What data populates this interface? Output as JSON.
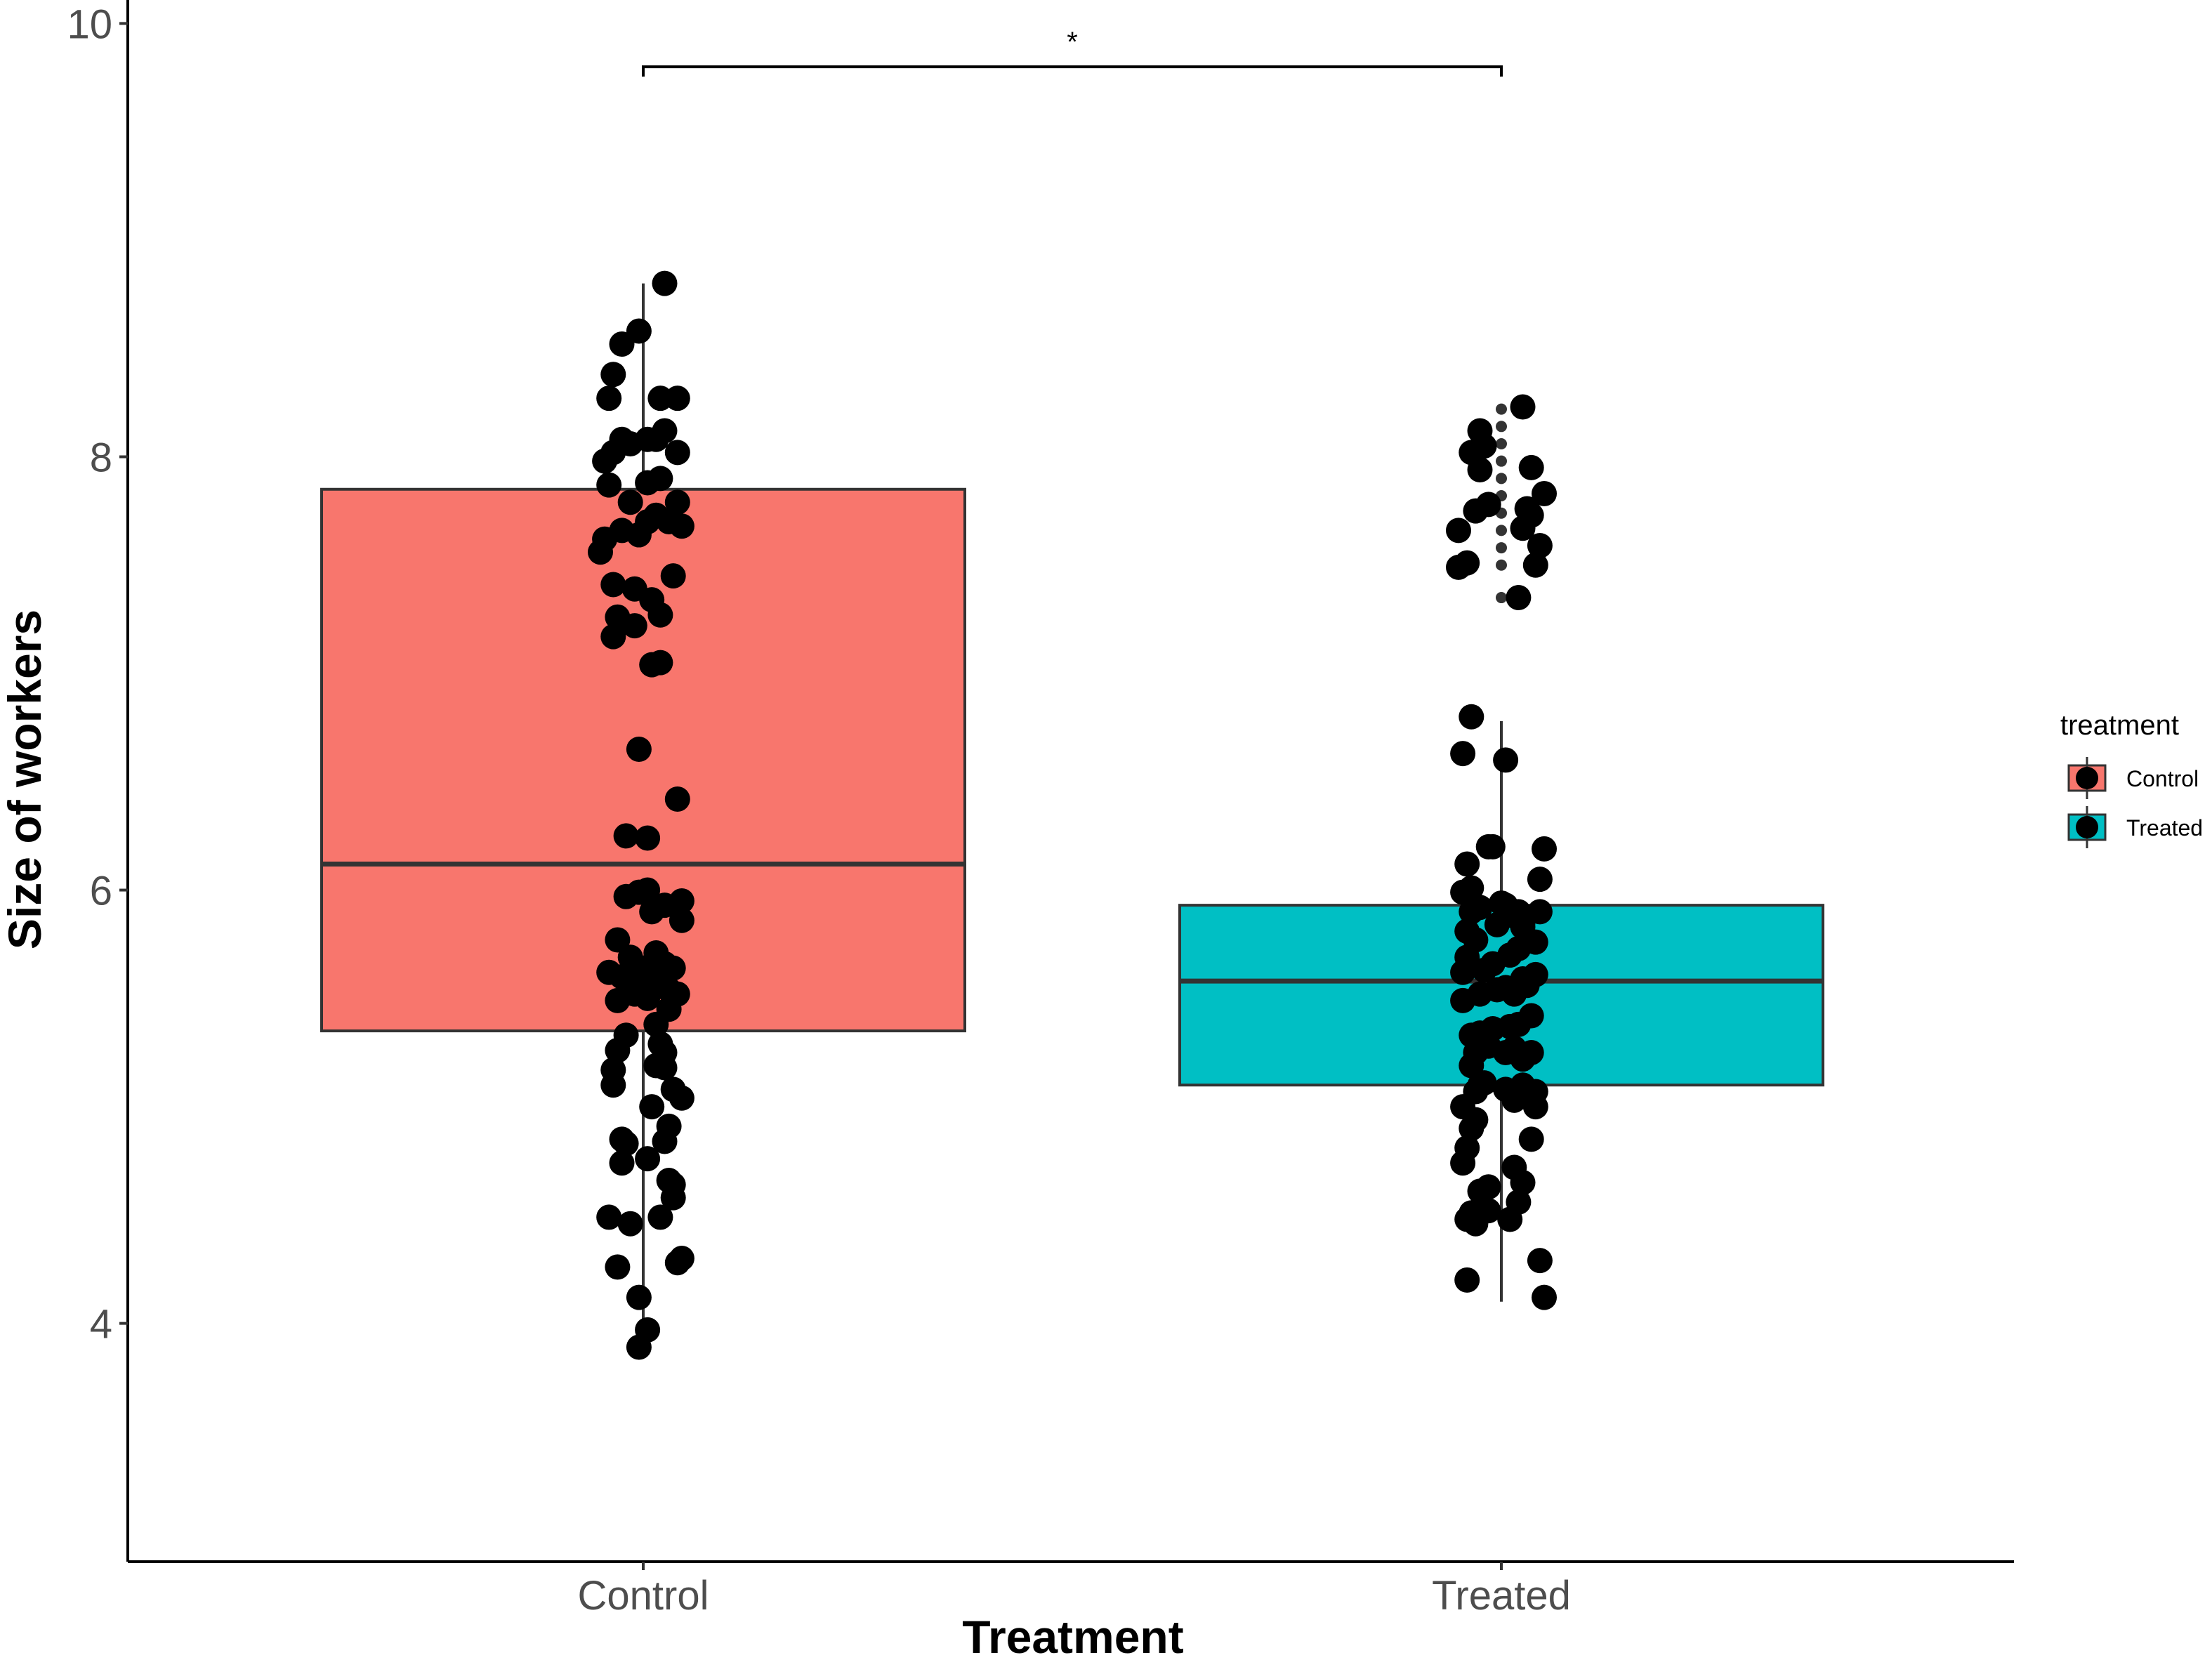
{
  "chart_data": {
    "type": "box",
    "xlabel": "Treatment",
    "ylabel": "Size of workers",
    "categories": [
      "Control",
      "Treated"
    ],
    "ylim": [
      2.9,
      10.05
    ],
    "yticks": [
      4,
      6,
      8,
      10
    ],
    "grid": false,
    "legend": {
      "title": "treatment",
      "position": "right",
      "entries": [
        "Control",
        "Treated"
      ]
    },
    "significance": {
      "label": "*",
      "between": [
        "Control",
        "Treated"
      ],
      "y": 9.8
    },
    "colors": {
      "Control": "#f8766d",
      "Treated": "#00bfc4"
    },
    "boxes": [
      {
        "name": "Control",
        "min": 3.9,
        "q1": 5.35,
        "median": 6.12,
        "q3": 7.85,
        "max": 8.8,
        "points": [
          [
            -0.01,
            3.89
          ],
          [
            0.01,
            3.97
          ],
          [
            -0.01,
            4.12
          ],
          [
            -0.06,
            4.26
          ],
          [
            0.08,
            4.28
          ],
          [
            0.09,
            4.3
          ],
          [
            -0.08,
            4.49
          ],
          [
            0.04,
            4.49
          ],
          [
            -0.03,
            4.46
          ],
          [
            0.06,
            4.66
          ],
          [
            0.07,
            4.64
          ],
          [
            0.07,
            4.58
          ],
          [
            0.01,
            4.76
          ],
          [
            -0.05,
            4.74
          ],
          [
            -0.05,
            4.85
          ],
          [
            -0.04,
            4.83
          ],
          [
            0.05,
            4.84
          ],
          [
            0.06,
            4.91
          ],
          [
            0.02,
            5.0
          ],
          [
            -0.07,
            5.1
          ],
          [
            -0.07,
            5.17
          ],
          [
            0.09,
            5.04
          ],
          [
            0.07,
            5.08
          ],
          [
            0.05,
            5.18
          ],
          [
            0.03,
            5.19
          ],
          [
            -0.06,
            5.26
          ],
          [
            -0.04,
            5.33
          ],
          [
            0.04,
            5.29
          ],
          [
            0.05,
            5.25
          ],
          [
            0.03,
            5.38
          ],
          [
            0.06,
            5.45
          ],
          [
            -0.06,
            5.49
          ],
          [
            -0.02,
            5.52
          ],
          [
            0.01,
            5.5
          ],
          [
            0.06,
            5.54
          ],
          [
            0.08,
            5.52
          ],
          [
            -0.08,
            5.62
          ],
          [
            -0.05,
            5.6
          ],
          [
            -0.02,
            5.6
          ],
          [
            0.0,
            5.64
          ],
          [
            0.02,
            5.62
          ],
          [
            0.03,
            5.58
          ],
          [
            0.05,
            5.66
          ],
          [
            -0.01,
            5.56
          ],
          [
            -0.06,
            5.77
          ],
          [
            -0.03,
            5.69
          ],
          [
            0.03,
            5.71
          ],
          [
            0.07,
            5.64
          ],
          [
            -0.04,
            5.97
          ],
          [
            -0.01,
            5.99
          ],
          [
            0.01,
            6.0
          ],
          [
            0.02,
            5.9
          ],
          [
            0.05,
            5.93
          ],
          [
            0.09,
            5.86
          ],
          [
            0.09,
            5.95
          ],
          [
            -0.04,
            6.25
          ],
          [
            0.01,
            6.24
          ],
          [
            0.08,
            6.42
          ],
          [
            -0.01,
            6.65
          ],
          [
            0.02,
            7.04
          ],
          [
            0.04,
            7.05
          ],
          [
            -0.07,
            7.17
          ],
          [
            -0.06,
            7.26
          ],
          [
            -0.02,
            7.22
          ],
          [
            0.02,
            7.34
          ],
          [
            0.04,
            7.27
          ],
          [
            -0.07,
            7.41
          ],
          [
            -0.02,
            7.39
          ],
          [
            0.07,
            7.45
          ],
          [
            -0.1,
            7.56
          ],
          [
            -0.09,
            7.62
          ],
          [
            -0.05,
            7.66
          ],
          [
            -0.01,
            7.64
          ],
          [
            0.01,
            7.7
          ],
          [
            0.03,
            7.73
          ],
          [
            0.06,
            7.7
          ],
          [
            0.09,
            7.68
          ],
          [
            -0.08,
            7.87
          ],
          [
            -0.03,
            7.79
          ],
          [
            0.01,
            7.88
          ],
          [
            0.04,
            7.9
          ],
          [
            0.08,
            7.79
          ],
          [
            -0.09,
            7.98
          ],
          [
            -0.07,
            8.02
          ],
          [
            -0.05,
            8.08
          ],
          [
            -0.03,
            8.06
          ],
          [
            0.01,
            8.08
          ],
          [
            0.03,
            8.08
          ],
          [
            0.05,
            8.12
          ],
          [
            0.08,
            8.02
          ],
          [
            -0.08,
            8.27
          ],
          [
            -0.07,
            8.38
          ],
          [
            0.04,
            8.27
          ],
          [
            0.08,
            8.27
          ],
          [
            -0.05,
            8.52
          ],
          [
            -0.01,
            8.58
          ],
          [
            0.05,
            8.8
          ]
        ]
      },
      {
        "name": "Treated",
        "min": 4.1,
        "q1": 5.1,
        "median": 5.58,
        "q3": 5.93,
        "max": 6.78,
        "outliers": [
          7.35,
          7.5,
          7.58,
          7.66,
          7.74,
          7.82,
          7.9,
          7.98,
          8.06,
          8.14,
          8.22
        ],
        "points": [
          [
            0.1,
            4.12
          ],
          [
            -0.08,
            4.2
          ],
          [
            0.09,
            4.29
          ],
          [
            -0.08,
            4.48
          ],
          [
            -0.07,
            4.51
          ],
          [
            -0.06,
            4.46
          ],
          [
            -0.03,
            4.52
          ],
          [
            0.02,
            4.48
          ],
          [
            0.04,
            4.56
          ],
          [
            0.05,
            4.65
          ],
          [
            -0.05,
            4.61
          ],
          [
            -0.03,
            4.63
          ],
          [
            -0.09,
            4.74
          ],
          [
            -0.08,
            4.81
          ],
          [
            -0.07,
            4.9
          ],
          [
            -0.06,
            4.94
          ],
          [
            0.03,
            4.72
          ],
          [
            0.07,
            4.85
          ],
          [
            -0.09,
            5.0
          ],
          [
            -0.06,
            5.07
          ],
          [
            -0.05,
            5.1
          ],
          [
            -0.04,
            5.11
          ],
          [
            0.01,
            5.08
          ],
          [
            0.03,
            5.03
          ],
          [
            0.05,
            5.1
          ],
          [
            0.08,
            5.0
          ],
          [
            0.08,
            5.07
          ],
          [
            -0.07,
            5.19
          ],
          [
            -0.06,
            5.25
          ],
          [
            -0.03,
            5.28
          ],
          [
            0.01,
            5.25
          ],
          [
            0.03,
            5.27
          ],
          [
            0.05,
            5.22
          ],
          [
            0.07,
            5.25
          ],
          [
            -0.07,
            5.33
          ],
          [
            -0.05,
            5.34
          ],
          [
            -0.02,
            5.36
          ],
          [
            0.02,
            5.37
          ],
          [
            0.04,
            5.38
          ],
          [
            0.07,
            5.42
          ],
          [
            -0.09,
            5.49
          ],
          [
            -0.05,
            5.52
          ],
          [
            -0.01,
            5.54
          ],
          [
            0.01,
            5.55
          ],
          [
            0.03,
            5.52
          ],
          [
            0.05,
            5.59
          ],
          [
            0.06,
            5.56
          ],
          [
            0.08,
            5.61
          ],
          [
            -0.09,
            5.62
          ],
          [
            -0.08,
            5.69
          ],
          [
            -0.04,
            5.63
          ],
          [
            -0.02,
            5.66
          ],
          [
            0.02,
            5.7
          ],
          [
            0.04,
            5.73
          ],
          [
            -0.08,
            5.81
          ],
          [
            -0.06,
            5.77
          ],
          [
            -0.01,
            5.84
          ],
          [
            0.03,
            5.88
          ],
          [
            0.05,
            5.83
          ],
          [
            0.08,
            5.76
          ],
          [
            -0.07,
            5.9
          ],
          [
            -0.05,
            5.92
          ],
          [
            0.0,
            5.94
          ],
          [
            0.01,
            5.93
          ],
          [
            0.04,
            5.9
          ],
          [
            0.05,
            5.85
          ],
          [
            0.09,
            5.9
          ],
          [
            -0.09,
            5.99
          ],
          [
            -0.07,
            6.01
          ],
          [
            0.09,
            6.05
          ],
          [
            -0.08,
            6.12
          ],
          [
            -0.03,
            6.2
          ],
          [
            -0.02,
            6.2
          ],
          [
            0.1,
            6.19
          ],
          [
            -0.09,
            6.63
          ],
          [
            0.01,
            6.6
          ],
          [
            -0.07,
            6.8
          ],
          [
            -0.1,
            7.49
          ],
          [
            -0.08,
            7.51
          ],
          [
            -0.1,
            7.66
          ],
          [
            -0.06,
            7.75
          ],
          [
            -0.03,
            7.78
          ],
          [
            0.04,
            7.35
          ],
          [
            0.08,
            7.5
          ],
          [
            0.05,
            7.67
          ],
          [
            0.07,
            7.73
          ],
          [
            0.09,
            7.59
          ],
          [
            0.06,
            7.76
          ],
          [
            -0.05,
            7.94
          ],
          [
            0.07,
            7.95
          ],
          [
            0.1,
            7.83
          ],
          [
            -0.07,
            8.02
          ],
          [
            -0.04,
            8.05
          ],
          [
            -0.05,
            8.12
          ],
          [
            0.05,
            8.23
          ]
        ]
      }
    ]
  }
}
